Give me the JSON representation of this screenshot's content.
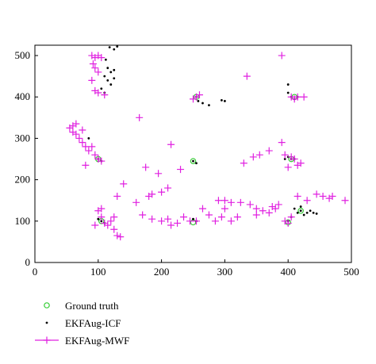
{
  "chart_data": {
    "type": "scatter",
    "xlim": [
      0,
      500
    ],
    "ylim": [
      0,
      525
    ],
    "xticks": [
      0,
      100,
      200,
      300,
      400,
      500
    ],
    "yticks": [
      0,
      100,
      200,
      300,
      400,
      500
    ],
    "legend": "bottom",
    "series": [
      {
        "name": "Ground truth",
        "color": "#33cc33",
        "marker": "circle",
        "x": [
          100,
          250,
          250,
          105,
          400,
          255,
          410,
          405,
          420
        ],
        "y": [
          250,
          245,
          97,
          100,
          97,
          400,
          400,
          250,
          125
        ]
      },
      {
        "name": "EKFAug-ICF",
        "color": "#000000",
        "marker": "dot",
        "x": [
          118,
          125,
          130,
          115,
          120,
          125,
          110,
          115,
          120,
          105,
          110,
          125,
          112,
          255,
          258,
          265,
          275,
          300,
          295,
          400,
          400,
          405,
          410,
          415,
          85,
          100,
          105,
          250,
          255,
          400,
          405,
          410,
          395,
          100,
          105,
          110,
          250,
          255,
          410,
          415,
          420,
          425,
          430,
          435,
          440,
          445,
          405,
          400,
          420
        ],
        "y": [
          520,
          515,
          522,
          470,
          460,
          465,
          450,
          440,
          430,
          420,
          410,
          445,
          490,
          400,
          390,
          385,
          380,
          390,
          392,
          430,
          410,
          400,
          395,
          400,
          300,
          250,
          245,
          245,
          240,
          255,
          250,
          250,
          250,
          105,
          100,
          95,
          105,
          100,
          130,
          120,
          125,
          115,
          120,
          125,
          120,
          118,
          110,
          100,
          135
        ]
      },
      {
        "name": "EKFAug-MWF",
        "color": "#e020e0",
        "marker": "plus",
        "x": [
          90,
          95,
          100,
          105,
          95,
          100,
          90,
          95,
          100,
          110,
          92,
          255,
          260,
          250,
          335,
          390,
          405,
          415,
          425,
          410,
          55,
          60,
          65,
          60,
          70,
          75,
          80,
          85,
          90,
          95,
          100,
          105,
          80,
          65,
          75,
          165,
          215,
          175,
          195,
          230,
          210,
          200,
          185,
          180,
          170,
          160,
          140,
          130,
          100,
          105,
          110,
          115,
          120,
          95,
          125,
          130,
          135,
          105,
          125,
          185,
          200,
          210,
          215,
          225,
          235,
          245,
          255,
          265,
          275,
          285,
          295,
          300,
          310,
          320,
          290,
          300,
          310,
          325,
          340,
          350,
          330,
          345,
          355,
          370,
          390,
          395,
          405,
          410,
          420,
          400,
          415,
          375,
          380,
          385,
          370,
          395,
          400,
          405,
          415,
          430,
          445,
          455,
          465,
          470,
          490,
          360,
          350
        ],
        "y": [
          500,
          495,
          500,
          495,
          470,
          460,
          440,
          415,
          410,
          405,
          480,
          400,
          405,
          395,
          450,
          500,
          400,
          400,
          400,
          395,
          325,
          330,
          335,
          315,
          300,
          290,
          280,
          270,
          280,
          260,
          250,
          245,
          235,
          310,
          320,
          350,
          285,
          230,
          215,
          225,
          180,
          170,
          165,
          160,
          115,
          145,
          190,
          160,
          125,
          110,
          95,
          90,
          100,
          90,
          80,
          65,
          62,
          130,
          110,
          105,
          100,
          105,
          90,
          95,
          110,
          100,
          100,
          130,
          115,
          100,
          110,
          130,
          100,
          110,
          150,
          150,
          145,
          145,
          140,
          130,
          240,
          255,
          260,
          270,
          290,
          260,
          255,
          250,
          240,
          230,
          235,
          135,
          130,
          140,
          120,
          100,
          95,
          110,
          160,
          150,
          165,
          160,
          155,
          160,
          150,
          125,
          115
        ]
      }
    ]
  }
}
